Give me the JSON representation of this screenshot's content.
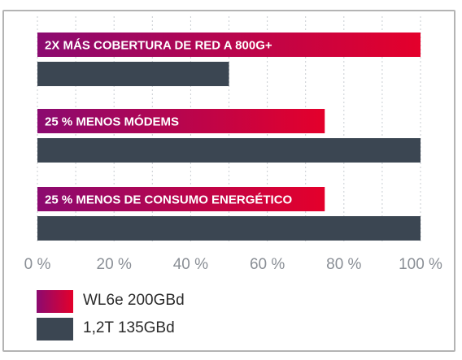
{
  "chart_data": {
    "type": "bar",
    "orientation": "horizontal",
    "categories": [
      "2X MÁS COBERTURA DE RED A 800G+",
      "25 % MENOS MÓDEMS",
      "25 % MENOS DE CONSUMO ENERGÉTICO"
    ],
    "series": [
      {
        "name": "WL6e 200GBd",
        "values": [
          100,
          75,
          75
        ],
        "colors": [
          "#8b0a70",
          "#e4002b"
        ]
      },
      {
        "name": "1,2T 135GBd",
        "values": [
          50,
          100,
          100
        ],
        "color": "#3b4652"
      }
    ],
    "xlim": [
      0,
      100
    ],
    "xticks": [
      0,
      20,
      40,
      60,
      80,
      100
    ],
    "xtick_labels": [
      "0 %",
      "20 %",
      "40 %",
      "60 %",
      "80 %",
      "100 %"
    ],
    "grid": "vertical dashed",
    "legend_placement": "bottom-left"
  }
}
